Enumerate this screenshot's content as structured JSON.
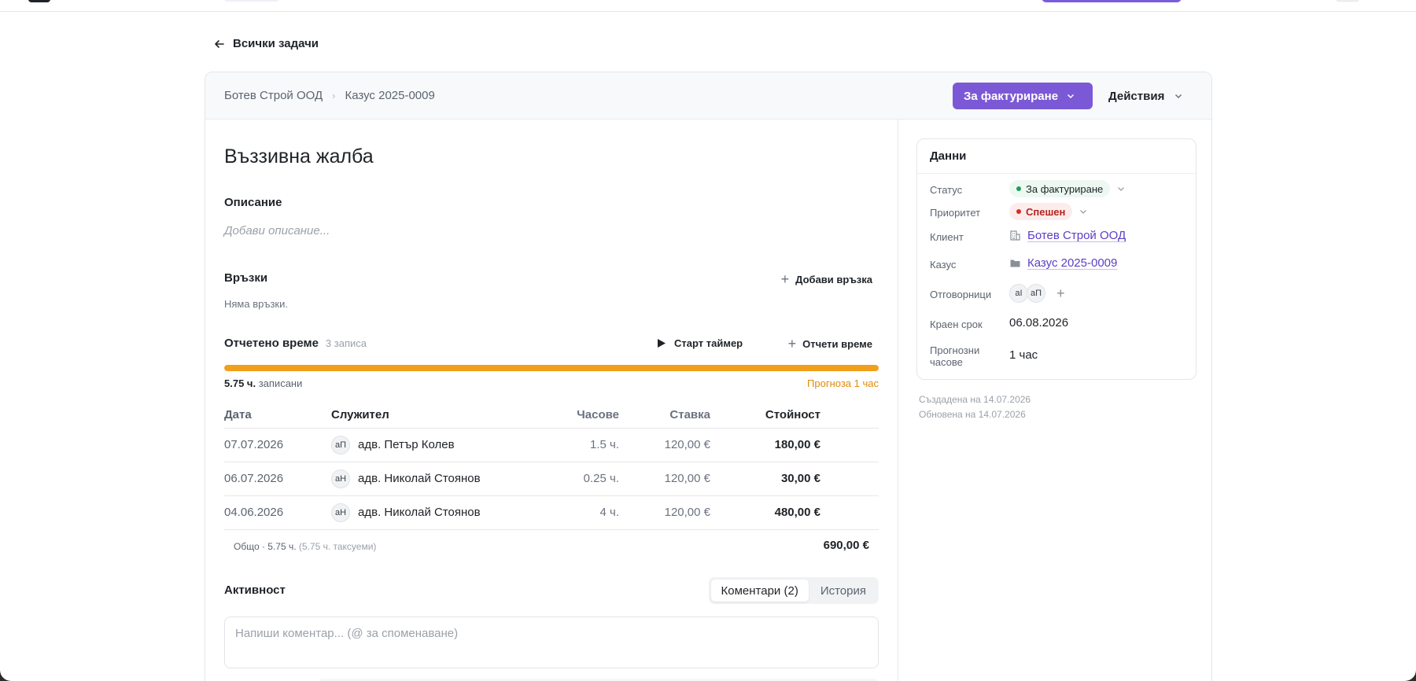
{
  "back_link": "Всички задачи",
  "breadcrumb": [
    "Ботев Строй ООД",
    "Казус 2025-0009"
  ],
  "header": {
    "status_button": "За фактуриране",
    "actions_button": "Действия"
  },
  "task": {
    "title": "Въззивна жалба",
    "description_label": "Описание",
    "description_placeholder": "Добави описание...",
    "links_label": "Връзки",
    "add_link": "Добави връзка",
    "no_links": "Няма връзки."
  },
  "time": {
    "label": "Отчетено време",
    "count": "3 записа",
    "start_timer": "Старт таймер",
    "log_time": "Отчети време",
    "recorded_value": "5.75 ч.",
    "recorded_suffix": "записани",
    "forecast": "Прогноза 1 час",
    "progress": 1.0,
    "progress_color": "#f0a01a",
    "columns": [
      "Дата",
      "Служител",
      "Часове",
      "Ставка",
      "Стойност"
    ],
    "rows": [
      {
        "date": "07.07.2026",
        "initials": "аП",
        "employee": "адв. Петър Колев",
        "hours": "1.5 ч.",
        "rate": "120,00 €",
        "value": "180,00 €"
      },
      {
        "date": "06.07.2026",
        "initials": "аН",
        "employee": "адв. Николай Стоянов",
        "hours": "0.25 ч.",
        "rate": "120,00 €",
        "value": "30,00 €"
      },
      {
        "date": "04.06.2026",
        "initials": "аН",
        "employee": "адв. Николай Стоянов",
        "hours": "4 ч.",
        "rate": "120,00 €",
        "value": "480,00 €"
      }
    ],
    "total_label": "Общо · 5.75 ч.",
    "total_billable": "(5.75 ч. таксуеми)",
    "total_value": "690,00 €"
  },
  "activity": {
    "label": "Активност",
    "tabs": [
      "Коментари (2)",
      "История"
    ],
    "active_tab": 0,
    "comment_placeholder": "Напиши коментар... (@ за споменаване)"
  },
  "details": {
    "title": "Данни",
    "status_label": "Статус",
    "status_value": "За фактуриране",
    "priority_label": "Приоритет",
    "priority_value": "Спешен",
    "client_label": "Клиент",
    "client_value": "Ботев Строй ООД",
    "case_label": "Казус",
    "case_value": "Казус 2025-0009",
    "responsible_label": "Отговорници",
    "responsible_initials": [
      "аI",
      "аП"
    ],
    "deadline_label": "Краен срок",
    "deadline_value": "06.08.2026",
    "forecast_label": "Прогнозни часове",
    "forecast_value": "1 час",
    "created": "Създадена на 14.07.2026",
    "updated": "Обновена на 14.07.2026"
  },
  "colors": {
    "accent": "#7b59d6",
    "link": "#5b3fc4",
    "warning": "#e08a0c",
    "danger": "#d92d20",
    "success": "#1e9e5a"
  }
}
